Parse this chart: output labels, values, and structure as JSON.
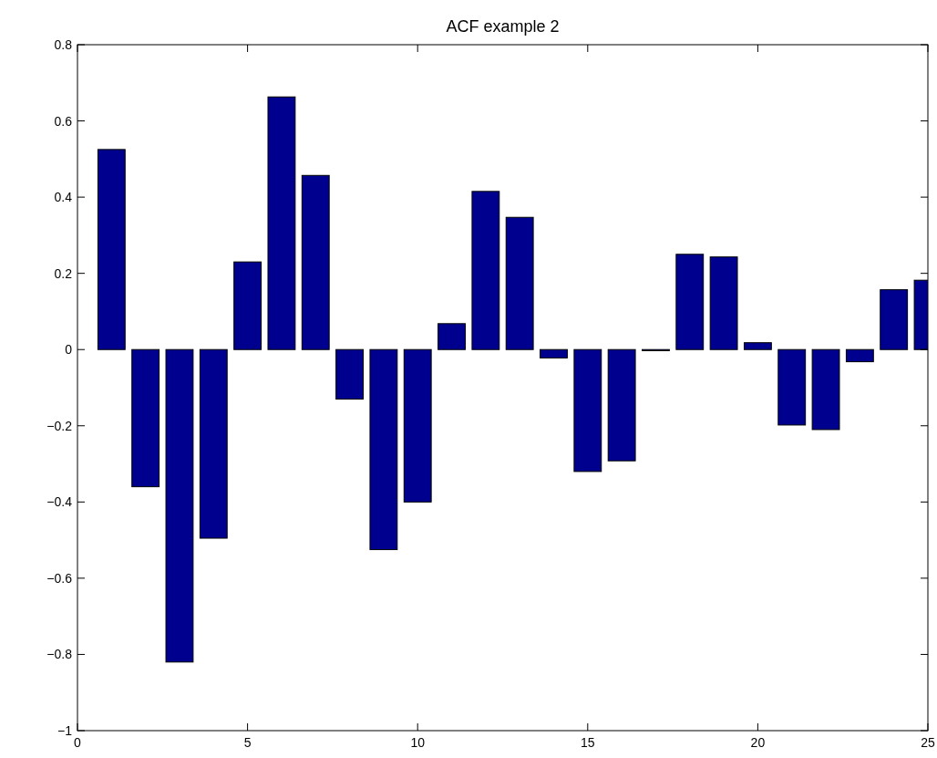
{
  "chart_data": {
    "type": "bar",
    "title": "ACF example 2",
    "x": [
      1,
      2,
      3,
      4,
      5,
      6,
      7,
      8,
      9,
      10,
      11,
      12,
      13,
      14,
      15,
      16,
      17,
      18,
      19,
      20,
      21,
      22,
      23,
      24,
      25
    ],
    "values": [
      0.525,
      -0.36,
      -0.82,
      -0.495,
      0.23,
      0.663,
      0.457,
      -0.13,
      -0.525,
      -0.4,
      0.068,
      0.415,
      0.347,
      -0.022,
      -0.32,
      -0.292,
      -0.003,
      0.25,
      0.243,
      0.018,
      -0.198,
      -0.21,
      -0.032,
      0.157,
      0.182
    ],
    "color": "#00008f",
    "xlim": [
      0,
      25
    ],
    "xticks": [
      0,
      5,
      10,
      15,
      20,
      25
    ],
    "ylim": [
      -1,
      0.8
    ],
    "yticks": [
      -1,
      -0.8,
      -0.6,
      -0.4,
      -0.2,
      0,
      0.2,
      0.4,
      0.6,
      0.8
    ]
  }
}
